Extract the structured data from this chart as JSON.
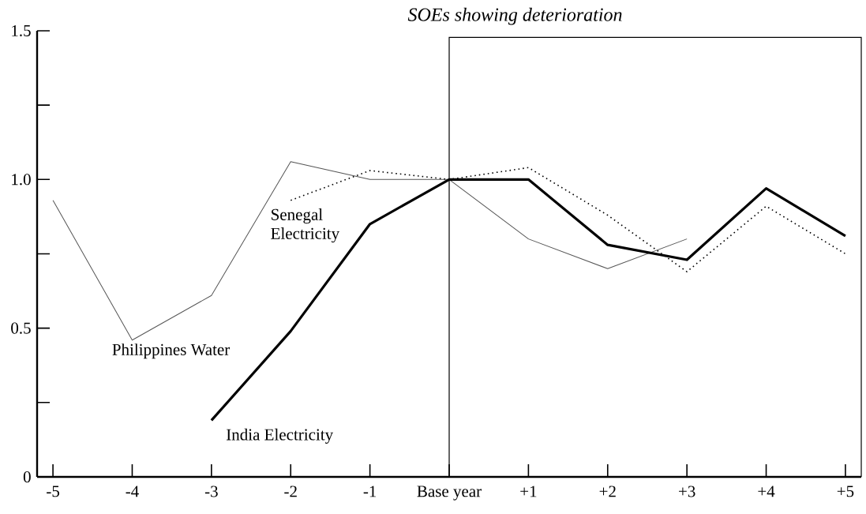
{
  "chart_data": {
    "type": "line",
    "title": "SOEs showing deterioration",
    "x": [
      -5,
      -4,
      -3,
      -2,
      -1,
      0,
      1,
      2,
      3,
      4,
      5
    ],
    "series": [
      {
        "name": "Philippines Water",
        "color": "#555555",
        "line_style": "solid",
        "values": [
          0.93,
          0.46,
          0.61,
          1.06,
          1.0,
          1.0,
          0.8,
          0.7,
          0.8,
          null,
          null
        ]
      },
      {
        "name": "Senegal Electricity",
        "color": "#000000",
        "line_style": "dotted",
        "values": [
          null,
          null,
          null,
          0.93,
          1.03,
          1.0,
          1.04,
          0.88,
          0.69,
          0.91,
          0.75
        ]
      },
      {
        "name": "India Electricity",
        "color": "#000000",
        "line_style": "solid",
        "values": [
          null,
          null,
          0.19,
          0.49,
          0.85,
          1.0,
          1.0,
          0.78,
          0.73,
          0.97,
          0.81
        ]
      }
    ],
    "xlim": [
      -5.2,
      5.2
    ],
    "xticks": [
      -5,
      -4,
      -3,
      -2,
      -1,
      {
        "value": 0,
        "label": "Base year"
      },
      {
        "value": 1,
        "label": "+1"
      },
      {
        "value": 2,
        "label": "+2"
      },
      {
        "value": 3,
        "label": "+3"
      },
      {
        "value": 4,
        "label": "+4"
      },
      {
        "value": 5,
        "label": "+5"
      }
    ],
    "ylim": [
      0,
      1.5
    ],
    "yticks": [
      0,
      {
        "value": 0.5,
        "label": "0.5"
      },
      {
        "value": 1,
        "label": "1.0"
      },
      {
        "value": 1.5,
        "label": "1.5"
      }
    ],
    "ref_lines": [
      {
        "axis": "x",
        "value": 0
      }
    ],
    "marker": "none"
  }
}
